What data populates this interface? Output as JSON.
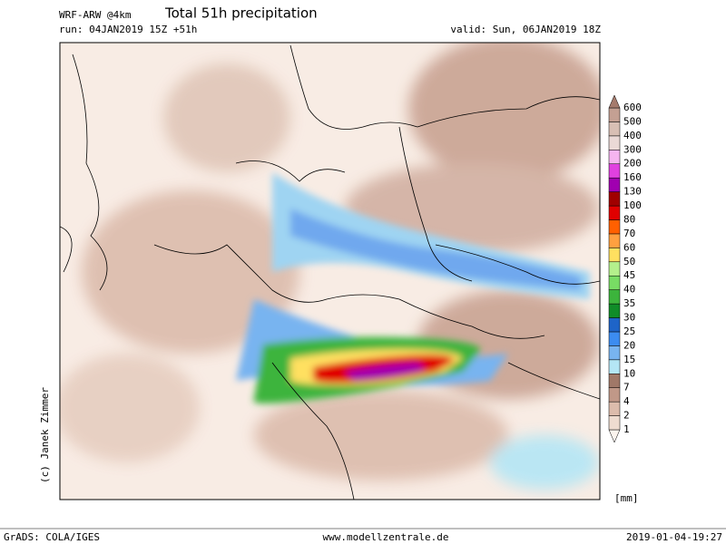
{
  "header": {
    "model": "WRF-ARW @4km",
    "title": "Total 51h precipitation",
    "run": "run: 04JAN2019 15Z +51h",
    "valid": "valid: Sun, 06JAN2019 18Z"
  },
  "credit": "(c) Janek Zimmer",
  "legend": {
    "unit": "[mm]",
    "levels": [
      1,
      2,
      4,
      7,
      10,
      15,
      20,
      25,
      30,
      35,
      40,
      45,
      50,
      60,
      70,
      80,
      100,
      130,
      160,
      200,
      300,
      400,
      500,
      600
    ],
    "colors": [
      "#fbf4ee",
      "#eedcd0",
      "#dcbcac",
      "#c09888",
      "#a07868",
      "#b4e6f5",
      "#78b4f0",
      "#3c8cf0",
      "#1e64c8",
      "#108c28",
      "#3cb43c",
      "#78dc64",
      "#b4f08c",
      "#ffe060",
      "#ffa040",
      "#ff6000",
      "#e00000",
      "#a00000",
      "#a000b0",
      "#e040e0",
      "#f5b4f0",
      "#ead9d6",
      "#d8bfb4",
      "#c4a093",
      "#a57b6d"
    ]
  },
  "footer": {
    "left": "GrADS: COLA/IGES",
    "center": "www.modellzentrale.de",
    "right": "2019-01-04-19:27"
  }
}
